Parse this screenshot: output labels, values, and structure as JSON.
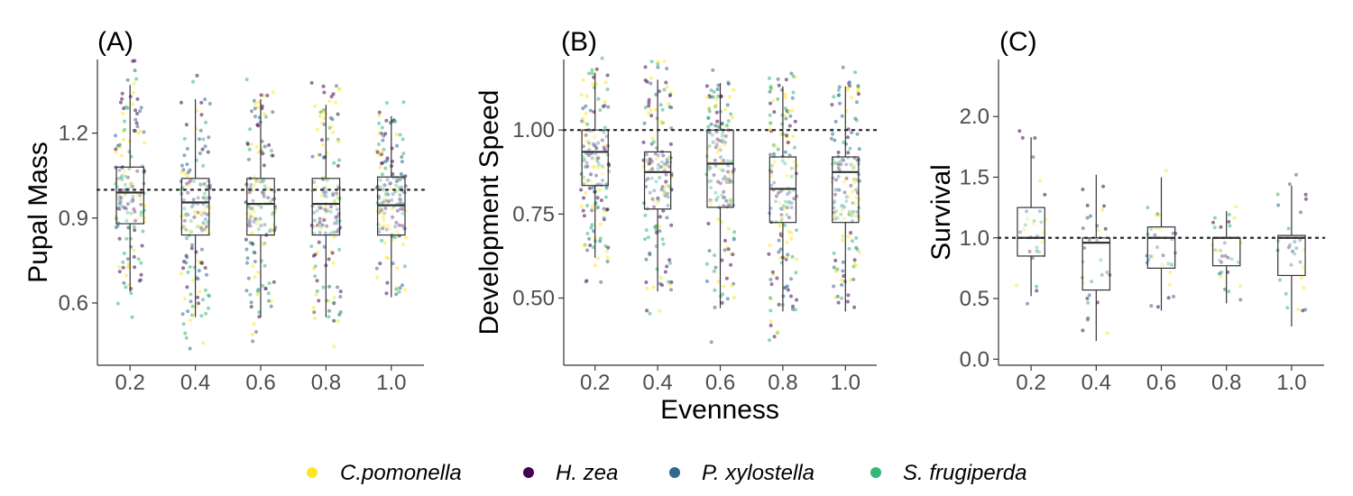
{
  "figure": {
    "shared_xlabel": "Evenness",
    "legend": {
      "position": "bottom",
      "items": [
        {
          "label": "C.pomonella",
          "color": "#FDE725"
        },
        {
          "label": "H. zea",
          "color": "#440154"
        },
        {
          "label": "P. xylostella",
          "color": "#31688E"
        },
        {
          "label": "S. frugiperda",
          "color": "#35B779"
        }
      ]
    }
  },
  "chart_data": [
    {
      "type": "box",
      "panel_label": "(A)",
      "ylabel": "Pupal Mass",
      "xlabel": "",
      "categories": [
        "0.2",
        "0.4",
        "0.6",
        "0.8",
        "1.0"
      ],
      "ylim": [
        0.38,
        1.46
      ],
      "yticks": [
        0.6,
        0.9,
        1.2
      ],
      "ytick_labels": [
        "0.6",
        "0.9",
        "1.2"
      ],
      "reference_line": 1.0,
      "grid": false,
      "boxes": [
        {
          "category": "0.2",
          "min": 0.64,
          "q1": 0.88,
          "median": 0.99,
          "q3": 1.08,
          "max": 1.37
        },
        {
          "category": "0.4",
          "min": 0.55,
          "q1": 0.84,
          "median": 0.955,
          "q3": 1.04,
          "max": 1.32
        },
        {
          "category": "0.6",
          "min": 0.55,
          "q1": 0.84,
          "median": 0.95,
          "q3": 1.04,
          "max": 1.32
        },
        {
          "category": "0.8",
          "min": 0.55,
          "q1": 0.84,
          "median": 0.95,
          "q3": 1.04,
          "max": 1.3
        },
        {
          "category": "1.0",
          "min": 0.62,
          "q1": 0.84,
          "median": 0.945,
          "q3": 1.045,
          "max": 1.26
        }
      ],
      "points_per_group": 160
    },
    {
      "type": "box",
      "panel_label": "(B)",
      "ylabel": "Development Speed",
      "xlabel": "Evenness",
      "categories": [
        "0.2",
        "0.4",
        "0.6",
        "0.8",
        "1.0"
      ],
      "ylim": [
        0.3,
        1.21
      ],
      "yticks": [
        0.5,
        0.75,
        1.0
      ],
      "ytick_labels": [
        "0.50",
        "0.75",
        "1.00"
      ],
      "reference_line": 1.0,
      "grid": false,
      "boxes": [
        {
          "category": "0.2",
          "min": 0.62,
          "q1": 0.835,
          "median": 0.935,
          "q3": 1.0,
          "max": 1.17
        },
        {
          "category": "0.4",
          "min": 0.52,
          "q1": 0.765,
          "median": 0.875,
          "q3": 0.935,
          "max": 1.15
        },
        {
          "category": "0.6",
          "min": 0.47,
          "q1": 0.77,
          "median": 0.9,
          "q3": 1.0,
          "max": 1.14
        },
        {
          "category": "0.8",
          "min": 0.46,
          "q1": 0.725,
          "median": 0.825,
          "q3": 0.92,
          "max": 1.13
        },
        {
          "category": "1.0",
          "min": 0.46,
          "q1": 0.725,
          "median": 0.875,
          "q3": 0.92,
          "max": 1.13
        }
      ],
      "points_per_group": 160
    },
    {
      "type": "box",
      "panel_label": "(C)",
      "ylabel": "Survival",
      "xlabel": "",
      "categories": [
        "0.2",
        "0.4",
        "0.6",
        "0.8",
        "1.0"
      ],
      "ylim": [
        -0.05,
        2.47
      ],
      "yticks": [
        0.0,
        0.5,
        1.0,
        1.5,
        2.0
      ],
      "ytick_labels": [
        "0.0",
        "0.5",
        "1.0",
        "1.5",
        "2.0"
      ],
      "reference_line": 1.0,
      "grid": false,
      "boxes": [
        {
          "category": "0.2",
          "min": 0.52,
          "q1": 0.85,
          "median": 1.0,
          "q3": 1.25,
          "max": 1.83
        },
        {
          "category": "0.4",
          "min": 0.15,
          "q1": 0.57,
          "median": 0.96,
          "q3": 1.0,
          "max": 1.52
        },
        {
          "category": "0.6",
          "min": 0.4,
          "q1": 0.75,
          "median": 1.0,
          "q3": 1.09,
          "max": 1.5
        },
        {
          "category": "0.8",
          "min": 0.46,
          "q1": 0.77,
          "median": 1.0,
          "q3": 1.0,
          "max": 1.22
        },
        {
          "category": "1.0",
          "min": 0.27,
          "q1": 0.69,
          "median": 1.0,
          "q3": 1.02,
          "max": 1.43
        }
      ],
      "points_per_group": 30
    }
  ]
}
